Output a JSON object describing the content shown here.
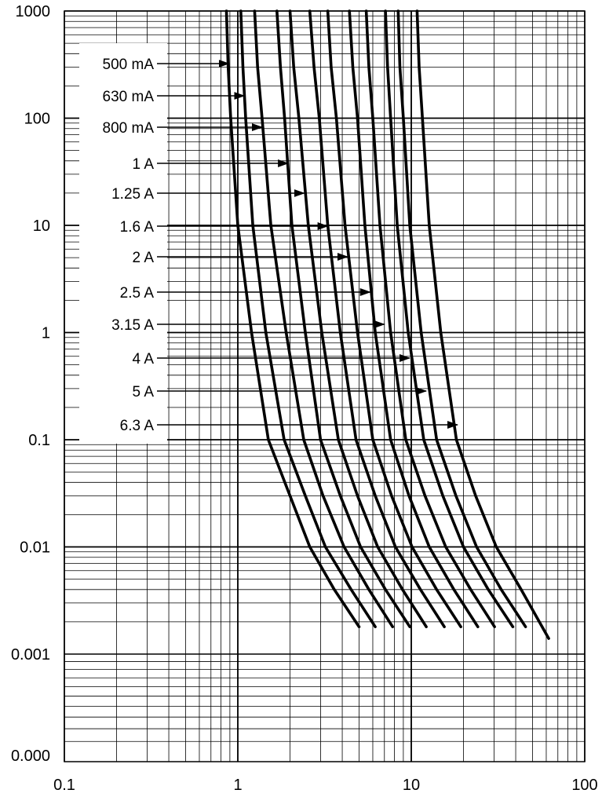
{
  "chart_data": {
    "type": "line",
    "title": "",
    "xlabel": "",
    "ylabel": "",
    "x_scale": "log",
    "y_scale": "log",
    "xlim": [
      0.1,
      100
    ],
    "ylim": [
      0.001,
      1000
    ],
    "grid": true,
    "colors": {
      "curve": "#000000",
      "grid": "#000000",
      "background": "#ffffff"
    },
    "x_ticks": [
      {
        "value": 0.1,
        "label": "0.1"
      },
      {
        "value": 1,
        "label": "1"
      },
      {
        "value": 10,
        "label": "10"
      },
      {
        "value": 100,
        "label": "100"
      }
    ],
    "y_ticks": [
      {
        "value": 1000,
        "label": "1000"
      },
      {
        "value": 100,
        "label": "100"
      },
      {
        "value": 10,
        "label": "10"
      },
      {
        "value": 1,
        "label": "1"
      },
      {
        "value": 0.1,
        "label": "0.1"
      },
      {
        "value": 0.01,
        "label": "0.01"
      },
      {
        "value": 0.001,
        "label": "0.001"
      },
      {
        "value": 0.0005,
        "label": "0.000"
      }
    ],
    "series": [
      {
        "name": "500 mA",
        "x": [
          0.86,
          0.88,
          0.91,
          1.0,
          1.2,
          1.5,
          2.0,
          2.6,
          3.6,
          5.0
        ],
        "y": [
          1000,
          300,
          100,
          10,
          1,
          0.1,
          0.03,
          0.01,
          0.004,
          0.0018
        ]
      },
      {
        "name": "630 mA",
        "x": [
          1.04,
          1.07,
          1.11,
          1.22,
          1.45,
          1.85,
          2.45,
          3.2,
          4.5,
          6.2
        ],
        "y": [
          1000,
          300,
          100,
          10,
          1,
          0.1,
          0.03,
          0.01,
          0.004,
          0.0018
        ]
      },
      {
        "name": "800 mA",
        "x": [
          1.25,
          1.3,
          1.38,
          1.55,
          1.9,
          2.4,
          3.1,
          4.1,
          5.7,
          7.8
        ],
        "y": [
          1000,
          300,
          100,
          10,
          1,
          0.1,
          0.03,
          0.01,
          0.004,
          0.0018
        ]
      },
      {
        "name": "1 A",
        "x": [
          1.68,
          1.76,
          1.86,
          2.05,
          2.45,
          3.0,
          3.9,
          5.1,
          7.1,
          9.8
        ],
        "y": [
          1000,
          300,
          100,
          10,
          1,
          0.1,
          0.03,
          0.01,
          0.004,
          0.0018
        ]
      },
      {
        "name": "1.25 A",
        "x": [
          2.0,
          2.1,
          2.25,
          2.55,
          3.05,
          3.8,
          4.9,
          6.4,
          8.9,
          12.2
        ],
        "y": [
          1000,
          300,
          100,
          10,
          1,
          0.1,
          0.03,
          0.01,
          0.004,
          0.0018
        ]
      },
      {
        "name": "1.6 A",
        "x": [
          2.6,
          2.75,
          2.95,
          3.3,
          3.9,
          4.8,
          6.2,
          8.1,
          11.3,
          15.5
        ],
        "y": [
          1000,
          300,
          100,
          10,
          1,
          0.1,
          0.03,
          0.01,
          0.004,
          0.0018
        ]
      },
      {
        "name": "2 A",
        "x": [
          3.3,
          3.45,
          3.7,
          4.15,
          4.9,
          6.0,
          7.7,
          10.1,
          14.0,
          19.3
        ],
        "y": [
          1000,
          300,
          100,
          10,
          1,
          0.1,
          0.03,
          0.01,
          0.004,
          0.0018
        ]
      },
      {
        "name": "2.5 A",
        "x": [
          4.4,
          4.6,
          4.9,
          5.4,
          6.2,
          7.6,
          9.7,
          12.7,
          17.6,
          24.2
        ],
        "y": [
          1000,
          300,
          100,
          10,
          1,
          0.1,
          0.03,
          0.01,
          0.004,
          0.0018
        ]
      },
      {
        "name": "3.15 A",
        "x": [
          5.5,
          5.7,
          6.0,
          6.6,
          7.6,
          9.3,
          12.0,
          15.8,
          22.0,
          30.2
        ],
        "y": [
          1000,
          300,
          100,
          10,
          1,
          0.1,
          0.03,
          0.01,
          0.004,
          0.0018
        ]
      },
      {
        "name": "4 A",
        "x": [
          7.1,
          7.3,
          7.6,
          8.3,
          9.6,
          11.8,
          15.2,
          20.0,
          27.8,
          38.5
        ],
        "y": [
          1000,
          300,
          100,
          10,
          1,
          0.1,
          0.03,
          0.01,
          0.004,
          0.0018
        ]
      },
      {
        "name": "5 A",
        "x": [
          8.4,
          8.6,
          9.0,
          9.8,
          11.4,
          14.0,
          18.1,
          23.8,
          33.0,
          45.6
        ],
        "y": [
          1000,
          300,
          100,
          10,
          1,
          0.1,
          0.03,
          0.01,
          0.004,
          0.0018
        ]
      },
      {
        "name": "6.3 A",
        "x": [
          10.8,
          11.1,
          11.6,
          12.7,
          14.8,
          18.2,
          23.5,
          30.9,
          43.0,
          62.0
        ],
        "y": [
          1000,
          300,
          100,
          10,
          1,
          0.1,
          0.03,
          0.01,
          0.004,
          0.0014
        ]
      }
    ],
    "annotations": [
      {
        "text": "500 mA",
        "series": "500 mA",
        "arrow_target": {
          "x": 0.89,
          "y": 300
        }
      },
      {
        "text": "630 mA",
        "series": "630 mA",
        "arrow_target": {
          "x": 1.09,
          "y": 170
        }
      },
      {
        "text": "800 mA",
        "series": "800 mA",
        "arrow_target": {
          "x": 1.38,
          "y": 92
        }
      },
      {
        "text": "1 A",
        "series": "1 A",
        "arrow_target": {
          "x": 1.95,
          "y": 40
        }
      },
      {
        "text": "1.25 A",
        "series": "1.25 A",
        "arrow_target": {
          "x": 2.42,
          "y": 21
        }
      },
      {
        "text": "1.6 A",
        "series": "1.6 A",
        "arrow_target": {
          "x": 3.3,
          "y": 10
        }
      },
      {
        "text": "2 A",
        "series": "2 A",
        "arrow_target": {
          "x": 4.3,
          "y": 5
        }
      },
      {
        "text": "2.5 A",
        "series": "2.5 A",
        "arrow_target": {
          "x": 5.8,
          "y": 2.3
        }
      },
      {
        "text": "3.15 A",
        "series": "3.15 A",
        "arrow_target": {
          "x": 7.0,
          "y": 1.1
        }
      },
      {
        "text": "4 A",
        "series": "4 A",
        "arrow_target": {
          "x": 9.8,
          "y": 0.55
        }
      },
      {
        "text": "5 A",
        "series": "5 A",
        "arrow_target": {
          "x": 12.2,
          "y": 0.25
        }
      },
      {
        "text": "6.3 A",
        "series": "6.3 A",
        "arrow_target": {
          "x": 18.5,
          "y": 0.12
        }
      }
    ]
  }
}
